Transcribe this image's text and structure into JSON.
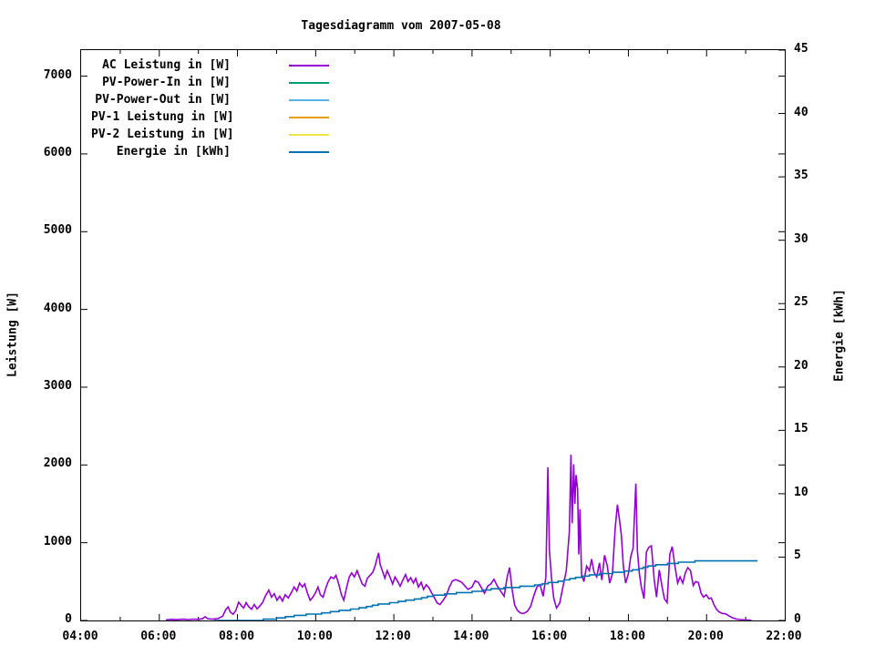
{
  "chart": {
    "background": "#ffffff",
    "border_color": "#000000",
    "text_color": "#000000"
  },
  "chart_data": {
    "type": "line",
    "title": "Tagesdiagramm vom 2007-05-08",
    "grid": false,
    "legend_position": "top-left-inside",
    "x_axis": {
      "range": [
        4,
        22
      ],
      "minor_tick_hours": 1,
      "ticks": [
        {
          "v": 4,
          "label": "04:00"
        },
        {
          "v": 6,
          "label": "06:00"
        },
        {
          "v": 8,
          "label": "08:00"
        },
        {
          "v": 10,
          "label": "10:00"
        },
        {
          "v": 12,
          "label": "12:00"
        },
        {
          "v": 14,
          "label": "14:00"
        },
        {
          "v": 16,
          "label": "16:00"
        },
        {
          "v": 18,
          "label": "18:00"
        },
        {
          "v": 20,
          "label": "20:00"
        },
        {
          "v": 22,
          "label": "22:00"
        }
      ]
    },
    "y_left": {
      "label": "Leistung [W]",
      "range": [
        0,
        7335
      ],
      "ticks": [
        {
          "v": 0,
          "label": "0"
        },
        {
          "v": 1000,
          "label": "1000"
        },
        {
          "v": 2000,
          "label": "2000"
        },
        {
          "v": 3000,
          "label": "3000"
        },
        {
          "v": 4000,
          "label": "4000"
        },
        {
          "v": 5000,
          "label": "5000"
        },
        {
          "v": 6000,
          "label": "6000"
        },
        {
          "v": 7000,
          "label": "7000"
        }
      ]
    },
    "y_right": {
      "label": "Energie [kWh]",
      "range": [
        0,
        45
      ],
      "ticks": [
        {
          "v": 0,
          "label": "0"
        },
        {
          "v": 5,
          "label": "5"
        },
        {
          "v": 10,
          "label": "10"
        },
        {
          "v": 15,
          "label": "15"
        },
        {
          "v": 20,
          "label": "20"
        },
        {
          "v": 25,
          "label": "25"
        },
        {
          "v": 30,
          "label": "30"
        },
        {
          "v": 35,
          "label": "35"
        },
        {
          "v": 40,
          "label": "40"
        },
        {
          "v": 45,
          "label": "45"
        }
      ]
    },
    "legend": [
      {
        "label": "AC Leistung in [W]",
        "color": "#9400d3"
      },
      {
        "label": "PV-Power-In in [W]",
        "color": "#009e73"
      },
      {
        "label": "PV-Power-Out in [W]",
        "color": "#56b4e9"
      },
      {
        "label": "PV-1 Leistung in [W]",
        "color": "#e69f00"
      },
      {
        "label": "PV-2 Leistung in [W]",
        "color": "#f0e442"
      },
      {
        "label": "Energie in [kWh]",
        "color": "#0072b2"
      }
    ],
    "series": [
      {
        "name": "AC Leistung in [W]",
        "color": "#9400d3",
        "axis": "left",
        "style": "line",
        "points": [
          [
            6.17,
            8
          ],
          [
            6.3,
            14
          ],
          [
            6.45,
            10
          ],
          [
            6.6,
            16
          ],
          [
            6.75,
            12
          ],
          [
            6.9,
            18
          ],
          [
            7.0,
            14
          ],
          [
            7.1,
            22
          ],
          [
            7.17,
            48
          ],
          [
            7.24,
            22
          ],
          [
            7.35,
            16
          ],
          [
            7.5,
            24
          ],
          [
            7.62,
            55
          ],
          [
            7.7,
            140
          ],
          [
            7.76,
            175
          ],
          [
            7.82,
            105
          ],
          [
            7.89,
            80
          ],
          [
            7.96,
            130
          ],
          [
            8.03,
            235
          ],
          [
            8.1,
            190
          ],
          [
            8.16,
            160
          ],
          [
            8.22,
            230
          ],
          [
            8.29,
            175
          ],
          [
            8.36,
            145
          ],
          [
            8.43,
            205
          ],
          [
            8.5,
            150
          ],
          [
            8.57,
            185
          ],
          [
            8.64,
            230
          ],
          [
            8.72,
            320
          ],
          [
            8.8,
            390
          ],
          [
            8.87,
            300
          ],
          [
            8.94,
            345
          ],
          [
            9.01,
            260
          ],
          [
            9.08,
            310
          ],
          [
            9.15,
            250
          ],
          [
            9.22,
            330
          ],
          [
            9.3,
            290
          ],
          [
            9.38,
            360
          ],
          [
            9.45,
            430
          ],
          [
            9.52,
            380
          ],
          [
            9.59,
            480
          ],
          [
            9.66,
            430
          ],
          [
            9.72,
            470
          ],
          [
            9.79,
            350
          ],
          [
            9.86,
            260
          ],
          [
            9.93,
            300
          ],
          [
            10.0,
            360
          ],
          [
            10.06,
            430
          ],
          [
            10.12,
            330
          ],
          [
            10.19,
            300
          ],
          [
            10.26,
            420
          ],
          [
            10.32,
            500
          ],
          [
            10.39,
            560
          ],
          [
            10.46,
            540
          ],
          [
            10.52,
            580
          ],
          [
            10.59,
            470
          ],
          [
            10.66,
            330
          ],
          [
            10.72,
            260
          ],
          [
            10.79,
            420
          ],
          [
            10.86,
            560
          ],
          [
            10.92,
            610
          ],
          [
            10.99,
            560
          ],
          [
            11.06,
            640
          ],
          [
            11.12,
            560
          ],
          [
            11.19,
            470
          ],
          [
            11.26,
            440
          ],
          [
            11.32,
            540
          ],
          [
            11.39,
            580
          ],
          [
            11.46,
            620
          ],
          [
            11.52,
            700
          ],
          [
            11.57,
            800
          ],
          [
            11.61,
            870
          ],
          [
            11.65,
            720
          ],
          [
            11.7,
            650
          ],
          [
            11.77,
            545
          ],
          [
            11.83,
            640
          ],
          [
            11.9,
            560
          ],
          [
            11.97,
            470
          ],
          [
            12.03,
            560
          ],
          [
            12.1,
            500
          ],
          [
            12.16,
            440
          ],
          [
            12.23,
            520
          ],
          [
            12.3,
            590
          ],
          [
            12.36,
            500
          ],
          [
            12.43,
            550
          ],
          [
            12.5,
            480
          ],
          [
            12.56,
            540
          ],
          [
            12.63,
            430
          ],
          [
            12.7,
            490
          ],
          [
            12.76,
            400
          ],
          [
            12.83,
            460
          ],
          [
            12.9,
            420
          ],
          [
            12.96,
            360
          ],
          [
            13.03,
            300
          ],
          [
            13.1,
            230
          ],
          [
            13.18,
            205
          ],
          [
            13.26,
            260
          ],
          [
            13.34,
            320
          ],
          [
            13.42,
            430
          ],
          [
            13.5,
            510
          ],
          [
            13.58,
            525
          ],
          [
            13.66,
            510
          ],
          [
            13.74,
            490
          ],
          [
            13.82,
            440
          ],
          [
            13.9,
            400
          ],
          [
            14.0,
            430
          ],
          [
            14.08,
            510
          ],
          [
            14.16,
            490
          ],
          [
            14.24,
            420
          ],
          [
            14.32,
            350
          ],
          [
            14.4,
            440
          ],
          [
            14.48,
            470
          ],
          [
            14.56,
            530
          ],
          [
            14.64,
            450
          ],
          [
            14.73,
            380
          ],
          [
            14.82,
            310
          ],
          [
            14.9,
            560
          ],
          [
            14.96,
            680
          ],
          [
            15.02,
            420
          ],
          [
            15.09,
            200
          ],
          [
            15.16,
            130
          ],
          [
            15.24,
            95
          ],
          [
            15.32,
            90
          ],
          [
            15.41,
            115
          ],
          [
            15.5,
            180
          ],
          [
            15.58,
            320
          ],
          [
            15.66,
            430
          ],
          [
            15.74,
            460
          ],
          [
            15.82,
            310
          ],
          [
            15.89,
            560
          ],
          [
            15.94,
            1970
          ],
          [
            15.98,
            900
          ],
          [
            16.03,
            560
          ],
          [
            16.09,
            290
          ],
          [
            16.16,
            160
          ],
          [
            16.24,
            220
          ],
          [
            16.32,
            420
          ],
          [
            16.41,
            640
          ],
          [
            16.49,
            1150
          ],
          [
            16.53,
            2130
          ],
          [
            16.56,
            1250
          ],
          [
            16.6,
            2010
          ],
          [
            16.63,
            1500
          ],
          [
            16.66,
            1870
          ],
          [
            16.7,
            1690
          ],
          [
            16.73,
            850
          ],
          [
            16.76,
            1430
          ],
          [
            16.8,
            600
          ],
          [
            16.86,
            500
          ],
          [
            16.93,
            700
          ],
          [
            17.0,
            640
          ],
          [
            17.06,
            790
          ],
          [
            17.12,
            620
          ],
          [
            17.19,
            560
          ],
          [
            17.26,
            740
          ],
          [
            17.32,
            520
          ],
          [
            17.39,
            840
          ],
          [
            17.46,
            700
          ],
          [
            17.52,
            480
          ],
          [
            17.59,
            600
          ],
          [
            17.66,
            1180
          ],
          [
            17.72,
            1490
          ],
          [
            17.77,
            1300
          ],
          [
            17.82,
            1100
          ],
          [
            17.87,
            700
          ],
          [
            17.93,
            480
          ],
          [
            18.0,
            600
          ],
          [
            18.06,
            820
          ],
          [
            18.12,
            930
          ],
          [
            18.19,
            1760
          ],
          [
            18.23,
            900
          ],
          [
            18.28,
            600
          ],
          [
            18.33,
            430
          ],
          [
            18.4,
            280
          ],
          [
            18.46,
            880
          ],
          [
            18.52,
            940
          ],
          [
            18.59,
            960
          ],
          [
            18.66,
            520
          ],
          [
            18.72,
            300
          ],
          [
            18.79,
            650
          ],
          [
            18.86,
            440
          ],
          [
            18.92,
            280
          ],
          [
            18.99,
            230
          ],
          [
            19.06,
            850
          ],
          [
            19.12,
            950
          ],
          [
            19.19,
            700
          ],
          [
            19.26,
            480
          ],
          [
            19.32,
            560
          ],
          [
            19.39,
            480
          ],
          [
            19.46,
            620
          ],
          [
            19.52,
            680
          ],
          [
            19.59,
            640
          ],
          [
            19.66,
            450
          ],
          [
            19.72,
            500
          ],
          [
            19.79,
            490
          ],
          [
            19.86,
            350
          ],
          [
            19.92,
            300
          ],
          [
            19.99,
            330
          ],
          [
            20.06,
            280
          ],
          [
            20.12,
            290
          ],
          [
            20.19,
            200
          ],
          [
            20.26,
            140
          ],
          [
            20.32,
            110
          ],
          [
            20.4,
            90
          ],
          [
            20.49,
            85
          ],
          [
            20.57,
            60
          ],
          [
            20.66,
            35
          ],
          [
            20.75,
            20
          ],
          [
            20.85,
            12
          ],
          [
            20.95,
            8
          ],
          [
            21.05,
            6
          ],
          [
            21.15,
            4
          ]
        ]
      },
      {
        "name": "PV-Power-In in [W]",
        "color": "#009e73",
        "axis": "left",
        "style": "line",
        "points": []
      },
      {
        "name": "PV-Power-Out in [W]",
        "color": "#56b4e9",
        "axis": "left",
        "style": "line",
        "points": []
      },
      {
        "name": "PV-1 Leistung in [W]",
        "color": "#e69f00",
        "axis": "left",
        "style": "line",
        "points": []
      },
      {
        "name": "PV-2 Leistung in [W]",
        "color": "#f0e442",
        "axis": "left",
        "style": "line",
        "points": []
      },
      {
        "name": "Energie in [kWh]",
        "color": "#0072b2",
        "axis": "right",
        "style": "steps",
        "points": [
          [
            7.4,
            0
          ],
          [
            8.4,
            0.02
          ],
          [
            8.66,
            0.1
          ],
          [
            9.0,
            0.2
          ],
          [
            9.3,
            0.35
          ],
          [
            9.64,
            0.48
          ],
          [
            10.0,
            0.55
          ],
          [
            10.3,
            0.68
          ],
          [
            10.6,
            0.8
          ],
          [
            11.0,
            0.95
          ],
          [
            11.3,
            1.1
          ],
          [
            11.6,
            1.3
          ],
          [
            12.0,
            1.45
          ],
          [
            12.3,
            1.6
          ],
          [
            12.6,
            1.75
          ],
          [
            13.0,
            2.0
          ],
          [
            13.3,
            2.1
          ],
          [
            13.6,
            2.2
          ],
          [
            14.0,
            2.3
          ],
          [
            14.3,
            2.42
          ],
          [
            14.6,
            2.55
          ],
          [
            15.0,
            2.65
          ],
          [
            15.3,
            2.72
          ],
          [
            15.6,
            2.8
          ],
          [
            15.95,
            3.0
          ],
          [
            16.2,
            3.1
          ],
          [
            16.5,
            3.3
          ],
          [
            16.8,
            3.5
          ],
          [
            17.0,
            3.6
          ],
          [
            17.34,
            3.73
          ],
          [
            17.6,
            3.8
          ],
          [
            17.9,
            3.9
          ],
          [
            18.1,
            4.0
          ],
          [
            18.3,
            4.15
          ],
          [
            18.5,
            4.3
          ],
          [
            18.7,
            4.4
          ],
          [
            19.0,
            4.5
          ],
          [
            19.2,
            4.58
          ],
          [
            19.4,
            4.65
          ],
          [
            19.7,
            4.7
          ],
          [
            20.0,
            4.72
          ],
          [
            20.5,
            4.74
          ],
          [
            21.0,
            4.75
          ],
          [
            21.3,
            4.75
          ]
        ]
      }
    ]
  }
}
